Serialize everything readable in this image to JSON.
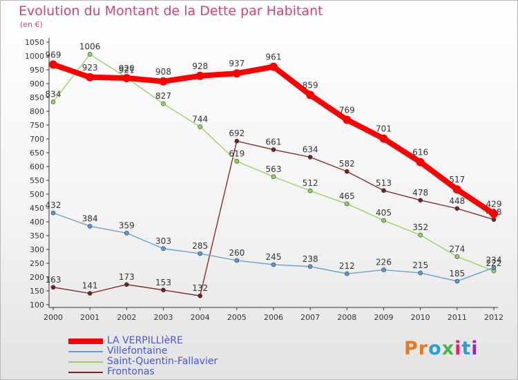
{
  "title": "Evolution du Montant de la Dette par Habitant",
  "unit": "(en €)",
  "logo": {
    "text": "Proxiti",
    "colors": [
      "#e87722",
      "#e87722",
      "#2a9fd6",
      "#4caf50",
      "#e91e63",
      "#2a9fd6",
      "#9c27b0"
    ]
  },
  "chart_data": {
    "type": "line",
    "title": "Evolution du Montant de la Dette par Habitant",
    "ylabel": "(en €)",
    "xlabel": "",
    "x": [
      "2000",
      "2001",
      "2002",
      "2003",
      "2004",
      "2005",
      "2006",
      "2007",
      "2008",
      "2009",
      "2010",
      "2011",
      "2012"
    ],
    "ylim": [
      100,
      1050
    ],
    "yticks": [
      100,
      150,
      200,
      250,
      300,
      350,
      400,
      450,
      500,
      550,
      600,
      650,
      700,
      750,
      800,
      850,
      900,
      950,
      1000,
      1050
    ],
    "grid": false,
    "legend_position": "bottom-left",
    "series": [
      {
        "name": "LA VERPILLIèRE",
        "color": "#ff0000",
        "values": [
          969,
          923,
          920,
          908,
          928,
          937,
          961,
          859,
          769,
          701,
          616,
          517,
          429
        ]
      },
      {
        "name": "Villefontaine",
        "color": "#5b9bd5",
        "values": [
          432,
          384,
          359,
          303,
          285,
          260,
          245,
          238,
          212,
          226,
          215,
          185,
          234
        ]
      },
      {
        "name": "Saint-Quentin-Fallavier",
        "color": "#8fd45a",
        "values": [
          834,
          1006,
          921,
          827,
          744,
          619,
          563,
          512,
          465,
          405,
          352,
          274,
          222
        ]
      },
      {
        "name": "Frontonas",
        "color": "#7a1f1f",
        "values": [
          163,
          141,
          173,
          153,
          132,
          692,
          661,
          634,
          582,
          513,
          478,
          448,
          408
        ]
      }
    ]
  }
}
